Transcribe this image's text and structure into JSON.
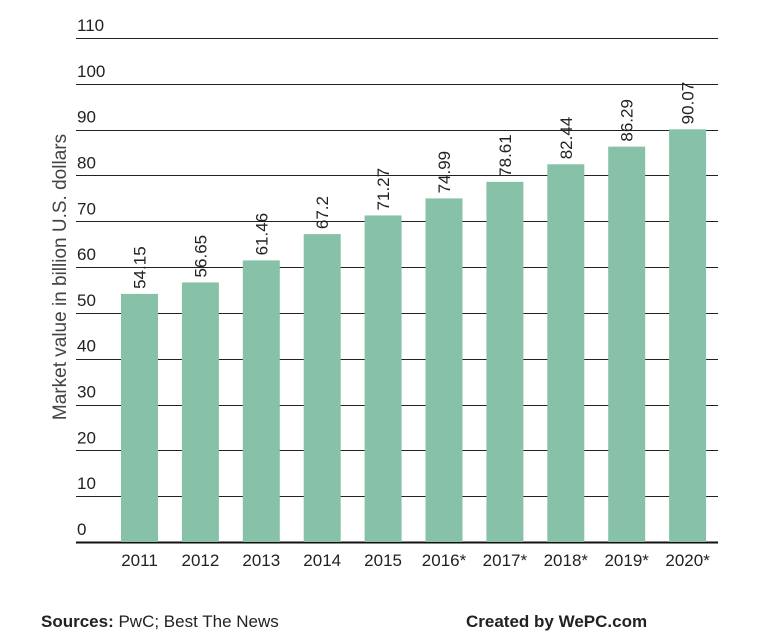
{
  "chart_data": {
    "type": "bar",
    "categories": [
      "2011",
      "2012",
      "2013",
      "2014",
      "2015",
      "2016*",
      "2017*",
      "2018*",
      "2019*",
      "2020*"
    ],
    "values": [
      54.15,
      56.65,
      61.46,
      67.2,
      71.27,
      74.99,
      78.61,
      82.44,
      86.29,
      90.07
    ],
    "value_labels": [
      "54.15",
      "56.65",
      "61.46",
      "67.2",
      "71.27",
      "74.99",
      "78.61",
      "82.44",
      "86.29",
      "90.07"
    ],
    "ylabel": "Market value in billion U.S. dollars",
    "xlabel": "",
    "ylim": [
      0,
      110
    ],
    "yticks": [
      0,
      10,
      20,
      30,
      40,
      50,
      60,
      70,
      80,
      90,
      100,
      110
    ],
    "grid": true,
    "bar_color": "#86c1a8"
  },
  "footer": {
    "sources_label": "Sources:",
    "sources_text": " PwC; Best The News",
    "credit": "Created by WePC.com"
  }
}
